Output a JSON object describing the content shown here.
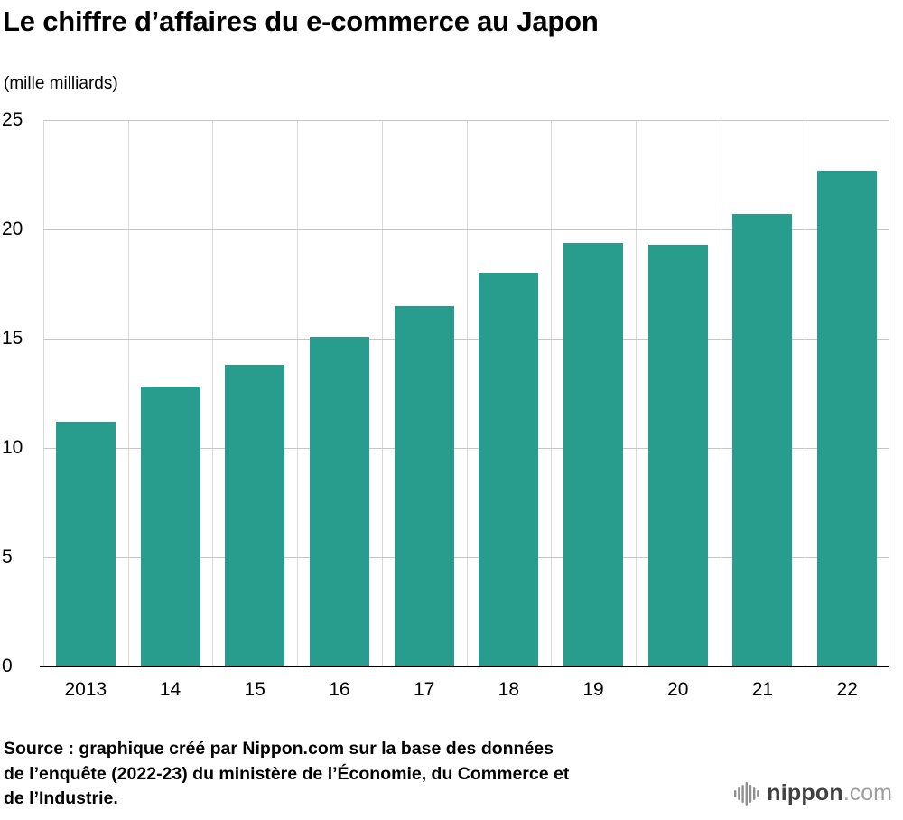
{
  "title": "Le chiffre d’affaires du e-commerce au Japon",
  "subtitle": "(mille milliards)",
  "chart_data": {
    "type": "bar",
    "categories": [
      "2013",
      "14",
      "15",
      "16",
      "17",
      "18",
      "19",
      "20",
      "21",
      "22"
    ],
    "values": [
      11.2,
      12.8,
      13.8,
      15.1,
      16.5,
      18.0,
      19.4,
      19.3,
      20.7,
      22.7
    ],
    "title": "Le chiffre d’affaires du e-commerce au Japon",
    "xlabel": "",
    "ylabel": "(mille milliards)",
    "ylim": [
      0,
      25
    ],
    "yticks": [
      0,
      5,
      10,
      15,
      20,
      25
    ],
    "grid": true,
    "legend_position": "none",
    "bar_color": "#289c8d"
  },
  "source": {
    "lines": [
      "Source : graphique créé par Nippon.com sur la base des données",
      "de l’enquête (2022-23) du ministère de l’Économie, du Commerce et",
      "de l’Industrie."
    ]
  },
  "logo": {
    "name": "nippon",
    "suffix": ".com",
    "icon": "soundwave-icon"
  },
  "colors": {
    "bar": "#289c8d",
    "hgrid": "#c6c6c6",
    "vgrid": "#d9d9d9",
    "axis": "#000000",
    "logo_icon": "#8f8f8f",
    "logo_name": "#414141",
    "logo_suffix": "#9e9e9e"
  }
}
